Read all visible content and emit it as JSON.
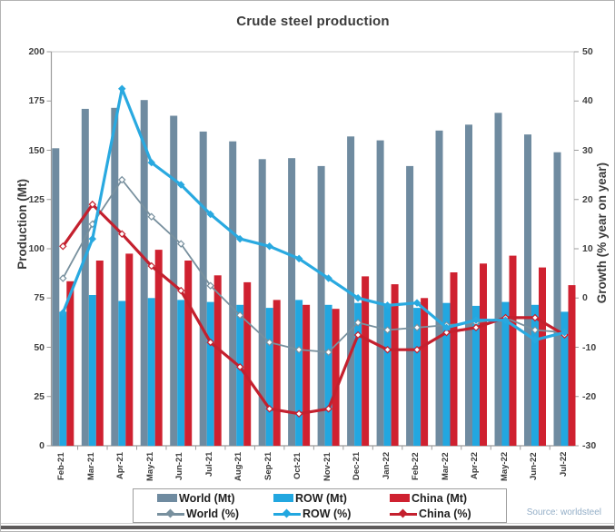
{
  "title": "Crude steel production",
  "source": "Source: worldsteel",
  "axes": {
    "left": {
      "label": "Production (Mt)",
      "ticks": [
        200,
        175,
        150,
        125,
        100,
        75,
        50,
        25,
        0
      ]
    },
    "right": {
      "label": "Growth (% year on year)",
      "ticks": [
        50,
        40,
        30,
        20,
        10,
        0,
        -10,
        -20,
        -30
      ]
    }
  },
  "legend": {
    "items": [
      {
        "label": "World (Mt)",
        "swatch": "bar",
        "color": "#6f8ba0"
      },
      {
        "label": "ROW (Mt)",
        "swatch": "bar",
        "color": "#22a7e0"
      },
      {
        "label": "China (Mt)",
        "swatch": "bar",
        "color": "#cf2130"
      },
      {
        "label": "World (%)",
        "swatch": "line",
        "color": "#78909e"
      },
      {
        "label": "ROW (%)",
        "swatch": "line",
        "color": "#22a7e0"
      },
      {
        "label": "China (%)",
        "swatch": "line",
        "color": "#c4202e"
      }
    ]
  },
  "colors": {
    "world_bar": "#6f8ba0",
    "row_bar": "#22a7e0",
    "china_bar": "#cf2130",
    "world_line": "#78909e",
    "row_line": "#29a9e0",
    "china_line": "#c4202e",
    "plot_border": "#c9c9c9",
    "axis_line": "#9b9b9b",
    "source_text": "#93aec7"
  },
  "chart_data": {
    "type": "bar+line combo",
    "title": "Crude steel production",
    "ylabel_left": "Production (Mt)",
    "ylabel_right": "Growth (% year on year)",
    "ylim_left": [
      0,
      200
    ],
    "ylim_right": [
      -30,
      50
    ],
    "grid": false,
    "legend_position": "bottom",
    "categories": [
      "Feb-21",
      "Mar-21",
      "Apr-21",
      "May-21",
      "Jun-21",
      "Jul-21",
      "Aug-21",
      "Sep-21",
      "Oct-21",
      "Nov-21",
      "Dec-21",
      "Jan-22",
      "Feb-22",
      "Mar-22",
      "Apr-22",
      "May-22",
      "Jun-22",
      "Jul-22"
    ],
    "series": [
      {
        "name": "World (Mt)",
        "type": "bar",
        "axis": "left",
        "color": "#6f8ba0",
        "values": [
          151,
          171,
          171.5,
          175.5,
          167.5,
          159.5,
          154.5,
          145.5,
          146,
          142,
          157,
          155,
          142,
          160,
          163,
          169,
          158,
          149
        ]
      },
      {
        "name": "ROW (Mt)",
        "type": "bar",
        "axis": "left",
        "color": "#22a7e0",
        "values": [
          68,
          76.5,
          73.5,
          75,
          74,
          73,
          71.5,
          70,
          74,
          71.5,
          72.5,
          71.5,
          70,
          72.5,
          71,
          73,
          71.5,
          68
        ]
      },
      {
        "name": "China (Mt)",
        "type": "bar",
        "axis": "left",
        "color": "#cf2130",
        "values": [
          83.5,
          94,
          97.5,
          99.5,
          94,
          86.5,
          83,
          74,
          71.5,
          69.5,
          86,
          82,
          75,
          88,
          92.5,
          96.5,
          90.5,
          81.5
        ]
      },
      {
        "name": "World (%)",
        "type": "line",
        "axis": "right",
        "color": "#78909e",
        "width": 1.8,
        "marker": "open-diamond",
        "values": [
          4,
          15,
          24,
          16.5,
          11,
          2.5,
          -3.5,
          -9,
          -10.5,
          -11,
          -5,
          -6.5,
          -6,
          -5.5,
          -5,
          -4,
          -6.5,
          -7
        ]
      },
      {
        "name": "China (%)",
        "type": "line",
        "axis": "right",
        "color": "#c4202e",
        "width": 3.2,
        "marker": "open-diamond",
        "values": [
          10.5,
          19,
          13,
          6.5,
          1.5,
          -9,
          -14,
          -22.5,
          -23.5,
          -22.5,
          -7.5,
          -10.5,
          -10.5,
          -7,
          -6,
          -4,
          -4,
          -7.5
        ]
      },
      {
        "name": "ROW (%)",
        "type": "line",
        "axis": "right",
        "color": "#29a9e0",
        "width": 3.2,
        "marker": "diamond",
        "values": [
          -3,
          12,
          42.5,
          27.5,
          23,
          17,
          12,
          10.5,
          8,
          4,
          0,
          -1.5,
          -1,
          -6,
          -4.5,
          -4.5,
          -8.5,
          -7
        ]
      }
    ]
  }
}
